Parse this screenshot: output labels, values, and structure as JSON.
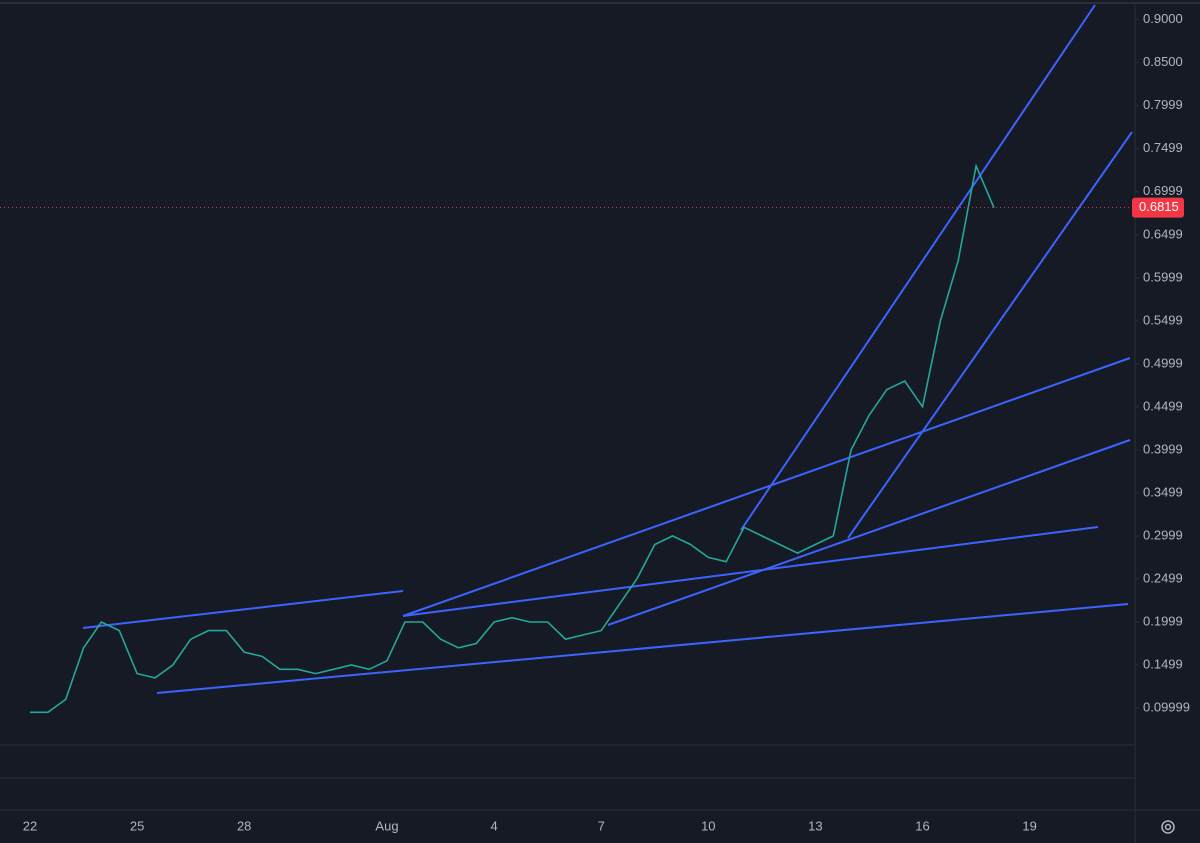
{
  "chart_data": {
    "type": "line",
    "categories": [
      "22",
      null,
      null,
      null,
      null,
      null,
      "25",
      null,
      null,
      null,
      null,
      null,
      "28",
      null,
      null,
      null,
      null,
      null,
      null,
      null,
      "Aug",
      null,
      null,
      null,
      null,
      null,
      "4",
      null,
      null,
      null,
      null,
      null,
      "7",
      null,
      null,
      null,
      null,
      null,
      "10",
      null,
      null,
      null,
      null,
      null,
      "13",
      null,
      null,
      null,
      null,
      null,
      "16",
      null,
      null,
      null,
      null,
      null,
      "19",
      null,
      null,
      null,
      null,
      null
    ],
    "series": [
      {
        "color": "#26a69a",
        "values": [
          0.095,
          0.095,
          0.11,
          0.17,
          0.2,
          0.19,
          0.14,
          0.135,
          0.15,
          0.18,
          0.19,
          0.19,
          0.165,
          0.16,
          0.145,
          0.145,
          0.14,
          0.145,
          0.15,
          0.145,
          0.155,
          0.2,
          0.2,
          0.18,
          0.17,
          0.175,
          0.2,
          0.205,
          0.2,
          0.2,
          0.18,
          0.185,
          0.19,
          0.22,
          0.25,
          0.29,
          0.3,
          0.29,
          0.275,
          0.27,
          0.31,
          0.3,
          0.29,
          0.28,
          0.29,
          0.3,
          0.4,
          0.44,
          0.47,
          0.48,
          0.45,
          0.55,
          0.62,
          0.73,
          0.6815,
          null,
          null,
          null,
          null,
          null,
          null,
          null
        ]
      }
    ],
    "ylim": [
      0.057,
      0.917
    ],
    "yticks": [
      {
        "value": 0.9,
        "label": "0.9000"
      },
      {
        "value": 0.85,
        "label": "0.8500"
      },
      {
        "value": 0.7999,
        "label": "0.7999"
      },
      {
        "value": 0.7499,
        "label": "0.7499"
      },
      {
        "value": 0.6999,
        "label": "0.6999"
      },
      {
        "value": 0.6499,
        "label": "0.6499"
      },
      {
        "value": 0.5999,
        "label": "0.5999"
      },
      {
        "value": 0.5499,
        "label": "0.5499"
      },
      {
        "value": 0.4999,
        "label": "0.4999"
      },
      {
        "value": 0.4499,
        "label": "0.4499"
      },
      {
        "value": 0.3999,
        "label": "0.3999"
      },
      {
        "value": 0.3499,
        "label": "0.3499"
      },
      {
        "value": 0.2999,
        "label": "0.2999"
      },
      {
        "value": 0.2499,
        "label": "0.2499"
      },
      {
        "value": 0.1999,
        "label": "0.1999"
      },
      {
        "value": 0.1499,
        "label": "0.1499"
      },
      {
        "value": 0.09999,
        "label": "0.09999"
      }
    ],
    "last_price": 0.6815,
    "last_price_color": "#f23645",
    "grid": false
  }
}
